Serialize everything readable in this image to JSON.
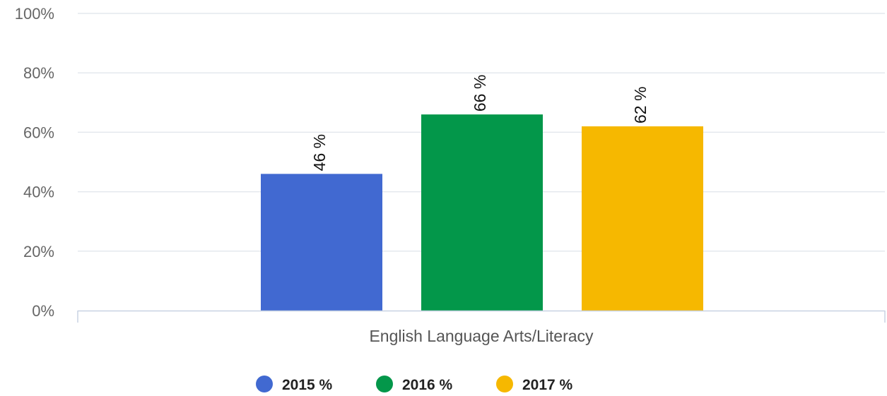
{
  "chart_data": {
    "type": "bar",
    "categories": [
      "English Language Arts/Literacy"
    ],
    "series": [
      {
        "name": "2015 %",
        "values": [
          46
        ],
        "color": "#4169d1",
        "data_label": "46 %"
      },
      {
        "name": "2016 %",
        "values": [
          66
        ],
        "color": "#03974a",
        "data_label": "66 %"
      },
      {
        "name": "2017 %",
        "values": [
          62
        ],
        "color": "#f6b800",
        "data_label": "62 %"
      }
    ],
    "yticks": [
      "0%",
      "20%",
      "40%",
      "60%",
      "80%",
      "100%"
    ],
    "ylim": [
      0,
      100
    ],
    "grid": true,
    "legend": "bottom-center"
  }
}
